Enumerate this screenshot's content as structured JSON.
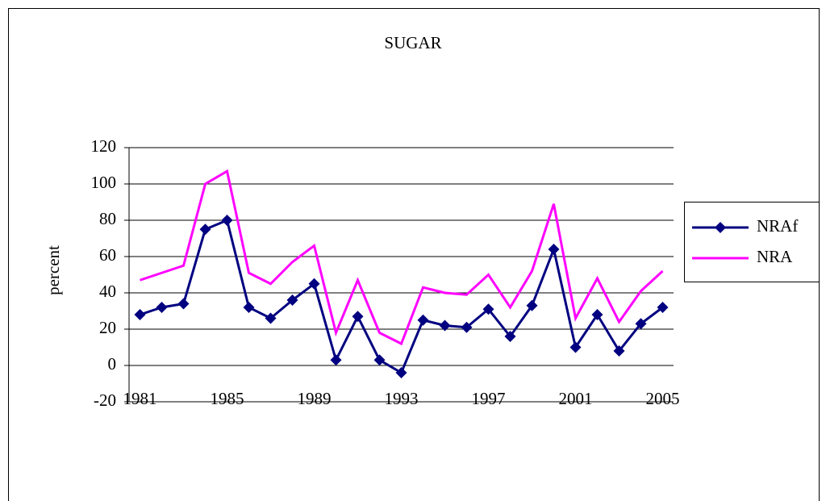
{
  "chart_data": {
    "type": "line",
    "title": "SUGAR",
    "y_label": "percent",
    "x": [
      1981,
      1982,
      1983,
      1984,
      1985,
      1986,
      1987,
      1988,
      1989,
      1990,
      1991,
      1992,
      1993,
      1994,
      1995,
      1996,
      1997,
      1998,
      1999,
      2000,
      2001,
      2002,
      2003,
      2004,
      2005
    ],
    "xlim": [
      1980.5,
      2005.5
    ],
    "xticks": [
      1981,
      1985,
      1989,
      1993,
      1997,
      2001,
      2005
    ],
    "ylim": [
      -20,
      120
    ],
    "yticks": [
      -20,
      0,
      20,
      40,
      60,
      80,
      100,
      120
    ],
    "grid": true,
    "legend": "right",
    "series": [
      {
        "name": "NRAf",
        "color": "#000080",
        "marker": "diamond",
        "values": [
          28,
          32,
          34,
          75,
          80,
          32,
          26,
          36,
          45,
          3,
          27,
          3,
          -4,
          25,
          22,
          21,
          31,
          16,
          33,
          64,
          10,
          28,
          8,
          23,
          32
        ]
      },
      {
        "name": "NRA",
        "color": "#ff00ff",
        "marker": "none",
        "values": [
          47,
          51,
          55,
          100,
          107,
          51,
          45,
          57,
          66,
          18,
          47,
          18,
          12,
          43,
          40,
          39,
          50,
          32,
          52,
          89,
          26,
          48,
          24,
          41,
          52
        ]
      }
    ]
  }
}
